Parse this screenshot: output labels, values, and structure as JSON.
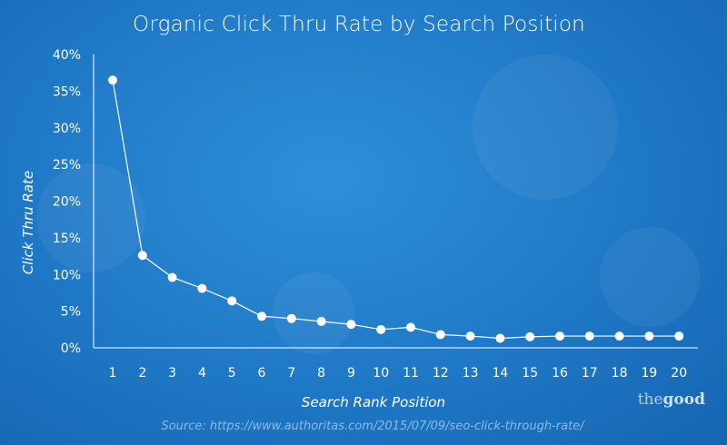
{
  "chart_data": {
    "type": "line",
    "title": "Organic Click Thru Rate by Search Position",
    "xlabel": "Search Rank Position",
    "ylabel": "Click Thru Rate",
    "x": [
      1,
      2,
      3,
      4,
      5,
      6,
      7,
      8,
      9,
      10,
      11,
      12,
      13,
      14,
      15,
      16,
      17,
      18,
      19,
      20
    ],
    "values": [
      36.5,
      12.6,
      9.6,
      8.1,
      6.4,
      4.3,
      4.0,
      3.6,
      3.2,
      2.5,
      2.8,
      1.8,
      1.6,
      1.3,
      1.5,
      1.6,
      1.6,
      1.6,
      1.6,
      1.6
    ],
    "ylim": [
      0,
      40
    ],
    "y_ticks": [
      "0%",
      "5%",
      "10%",
      "15%",
      "20%",
      "25%",
      "30%",
      "35%",
      "40%"
    ],
    "x_ticks": [
      "1",
      "2",
      "3",
      "4",
      "5",
      "6",
      "7",
      "8",
      "9",
      "10",
      "11",
      "12",
      "13",
      "14",
      "15",
      "16",
      "17",
      "18",
      "19",
      "20"
    ],
    "grid": false,
    "line_color": "#ffffff",
    "background_color": "#1f78c6"
  },
  "source": "Source: https://www.authoritas.com/2015/07/09/seo-click-through-rate/",
  "logo": {
    "prefix": "the",
    "suffix": "good"
  }
}
